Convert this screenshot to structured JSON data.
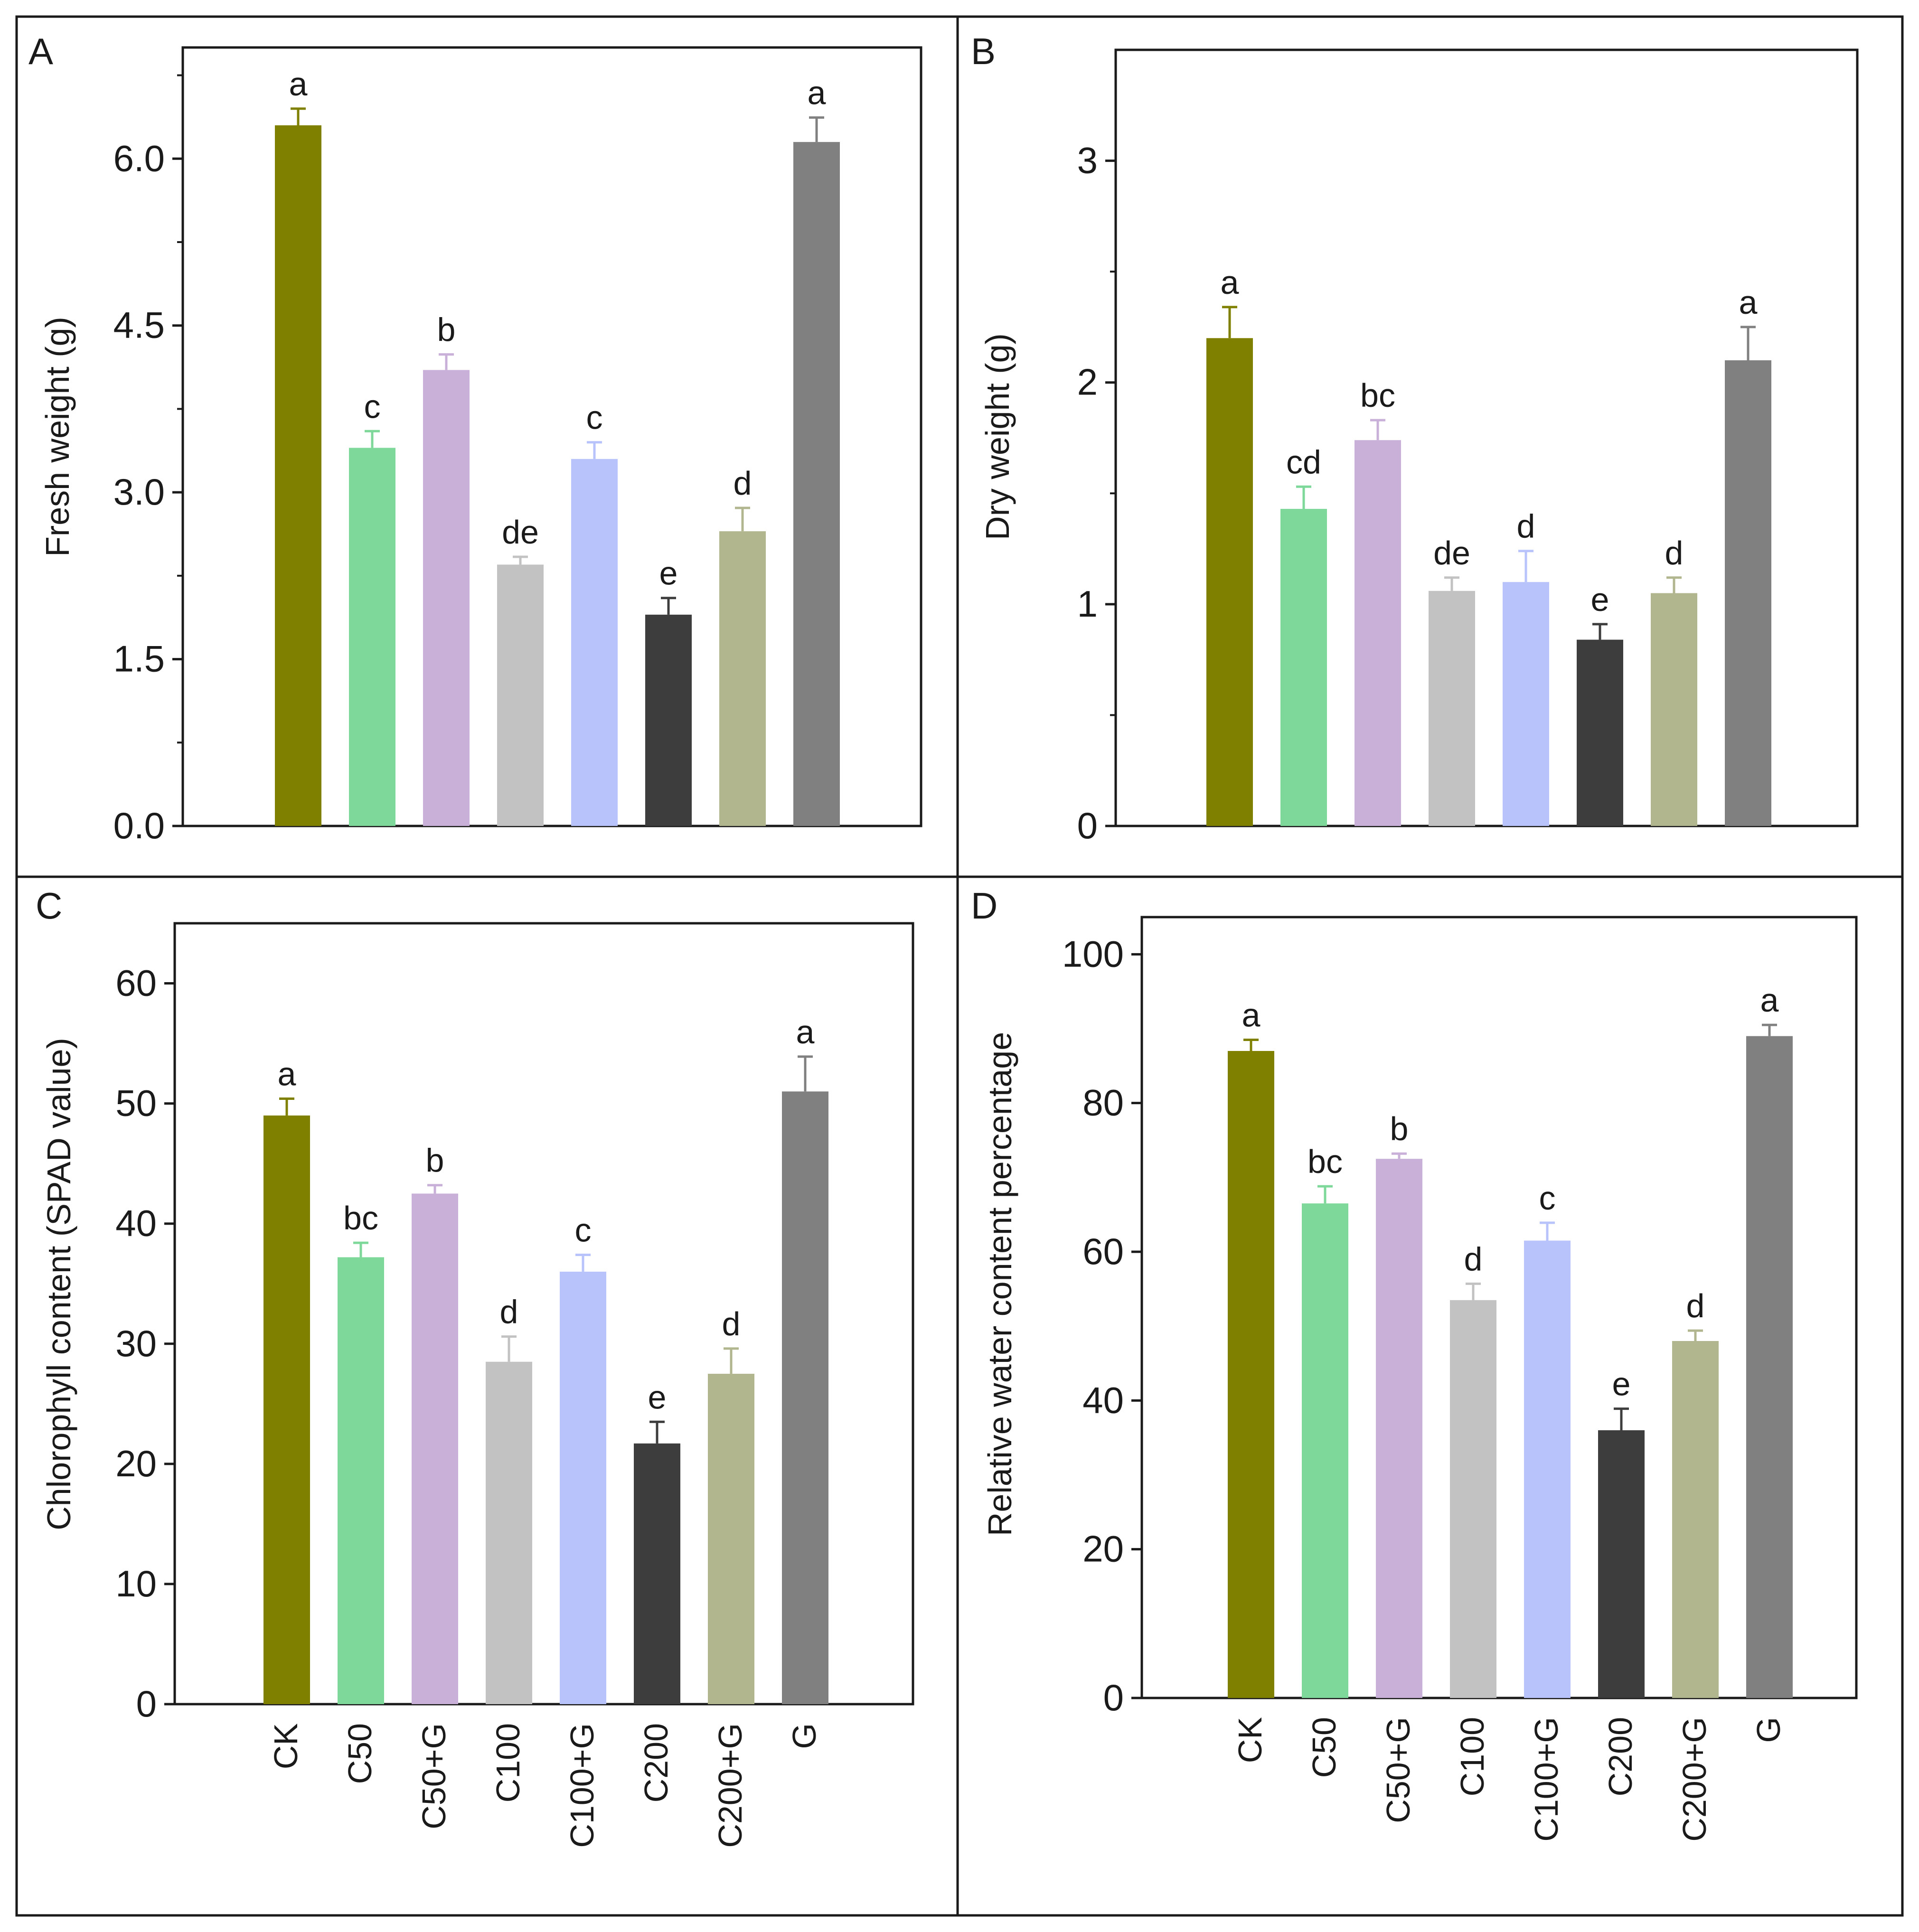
{
  "figure": {
    "categories": [
      "CK",
      "C50",
      "C50+G",
      "C100",
      "C100+G",
      "C200",
      "C200+G",
      "G"
    ],
    "colors": [
      "#808000",
      "#7dd89a",
      "#c8b0d8",
      "#c2c2c2",
      "#b7c3fa",
      "#3d3d3d",
      "#b1b68f",
      "#808080"
    ]
  },
  "chart_data": [
    {
      "type": "bar",
      "panel_label": "A",
      "ylabel": "Fresh weight (g)",
      "ylim": [
        0,
        7.0
      ],
      "yticks": [
        0.0,
        1.5,
        3.0,
        4.5,
        6.0
      ],
      "ytick_labels": [
        "0.0",
        "1.5",
        "3.0",
        "4.5",
        "6.0"
      ],
      "minor_ticks": true,
      "show_xlabels": false,
      "categories": [
        "CK",
        "C50",
        "C50+G",
        "C100",
        "C100+G",
        "C200",
        "C200+G",
        "G"
      ],
      "values": [
        6.3,
        3.4,
        4.1,
        2.35,
        3.3,
        1.9,
        2.65,
        6.15
      ],
      "errors": [
        0.15,
        0.15,
        0.14,
        0.07,
        0.15,
        0.15,
        0.21,
        0.22
      ],
      "letters": [
        "a",
        "c",
        "b",
        "de",
        "c",
        "e",
        "d",
        "a"
      ]
    },
    {
      "type": "bar",
      "panel_label": "B",
      "ylabel": "Dry weight (g)",
      "ylim": [
        0,
        3.5
      ],
      "yticks": [
        0,
        1,
        2,
        3
      ],
      "ytick_labels": [
        "0",
        "1",
        "2",
        "3"
      ],
      "minor_ticks": true,
      "show_xlabels": false,
      "categories": [
        "CK",
        "C50",
        "C50+G",
        "C100",
        "C100+G",
        "C200",
        "C200+G",
        "G"
      ],
      "values": [
        2.2,
        1.43,
        1.74,
        1.06,
        1.1,
        0.84,
        1.05,
        2.1
      ],
      "errors": [
        0.14,
        0.1,
        0.09,
        0.06,
        0.14,
        0.07,
        0.07,
        0.15
      ],
      "letters": [
        "a",
        "cd",
        "bc",
        "de",
        "d",
        "e",
        "d",
        "a"
      ]
    },
    {
      "type": "bar",
      "panel_label": "C",
      "ylabel": "Chlorophyll content (SPAD value)",
      "ylim": [
        0,
        65
      ],
      "yticks": [
        0,
        10,
        20,
        30,
        40,
        50,
        60
      ],
      "ytick_labels": [
        "0",
        "10",
        "20",
        "30",
        "40",
        "50",
        "60"
      ],
      "minor_ticks": false,
      "show_xlabels": true,
      "categories": [
        "CK",
        "C50",
        "C50+G",
        "C100",
        "C100+G",
        "C200",
        "C200+G",
        "G"
      ],
      "values": [
        49.0,
        37.2,
        42.5,
        28.5,
        36.0,
        21.7,
        27.5,
        51.0
      ],
      "errors": [
        1.4,
        1.2,
        0.7,
        2.1,
        1.4,
        1.8,
        2.1,
        2.9
      ],
      "letters": [
        "a",
        "bc",
        "b",
        "d",
        "c",
        "e",
        "d",
        "a"
      ]
    },
    {
      "type": "bar",
      "panel_label": "D",
      "ylabel": "Relative water content percentage",
      "ylim": [
        0,
        105
      ],
      "yticks": [
        0,
        20,
        40,
        60,
        80,
        100
      ],
      "ytick_labels": [
        "0",
        "20",
        "40",
        "60",
        "80",
        "100"
      ],
      "minor_ticks": false,
      "show_xlabels": true,
      "categories": [
        "CK",
        "C50",
        "C50+G",
        "C100",
        "C100+G",
        "C200",
        "C200+G",
        "G"
      ],
      "values": [
        87.0,
        66.5,
        72.5,
        53.5,
        61.5,
        36.0,
        48.0,
        89.0
      ],
      "errors": [
        1.5,
        2.3,
        0.7,
        2.2,
        2.4,
        2.9,
        1.4,
        1.5
      ],
      "letters": [
        "a",
        "bc",
        "b",
        "d",
        "c",
        "e",
        "d",
        "a"
      ]
    }
  ]
}
